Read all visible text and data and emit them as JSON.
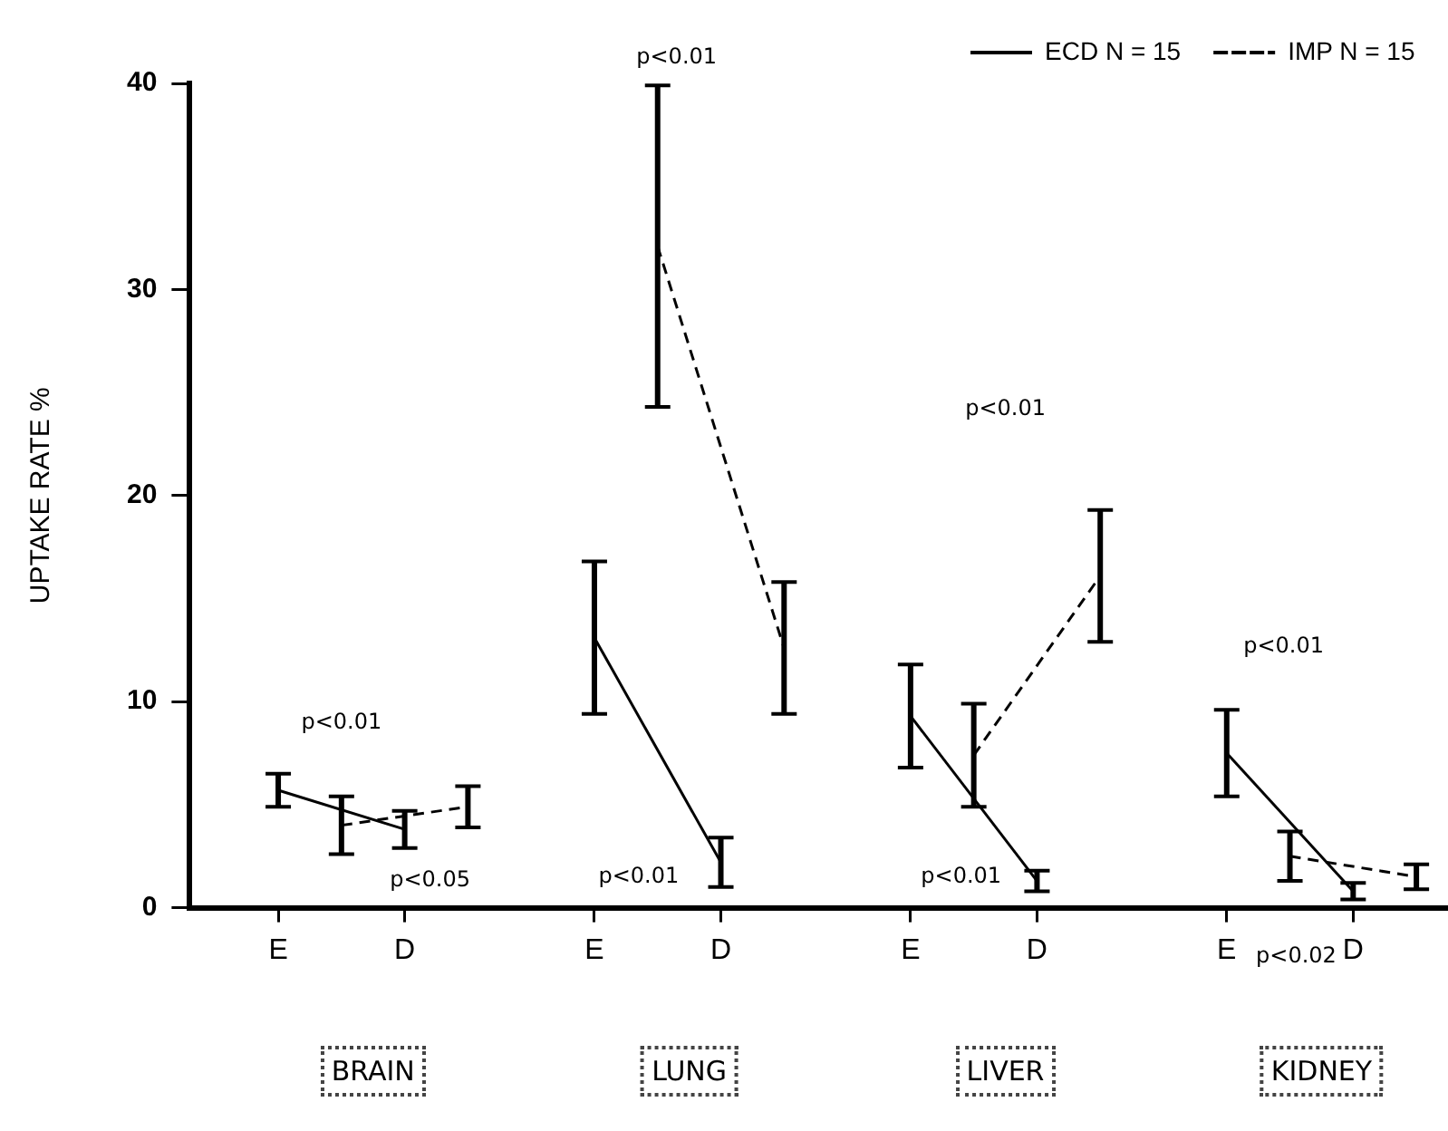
{
  "chart_data": {
    "type": "line",
    "ylabel": "UPTAKE RATE %",
    "categories": [
      "E",
      null,
      "D",
      null,
      null,
      "E",
      null,
      "D",
      null,
      null,
      "E",
      null,
      "D",
      null,
      null,
      "E",
      null,
      "D",
      null
    ],
    "ylim": [
      0,
      40
    ],
    "yticks": [
      0,
      10,
      20,
      30,
      40
    ],
    "legend": "top right",
    "series": [
      {
        "name": "ECD N = 15",
        "color": "#000000",
        "line_style": "solid",
        "values": [
          5.7,
          null,
          3.8,
          null,
          null,
          null,
          null,
          null,
          null,
          null,
          null,
          null,
          null,
          null,
          null,
          null,
          null,
          null,
          null
        ],
        "errors": [
          0.8,
          null,
          0.9,
          null,
          null,
          null,
          null,
          null,
          null,
          null,
          null,
          null,
          null,
          null,
          null,
          null,
          null,
          null,
          null
        ]
      },
      {
        "name": "IMP N = 15",
        "color": "#000000",
        "line_style": "dashed",
        "values": [
          null,
          4.0,
          null,
          4.9,
          null,
          null,
          null,
          null,
          null,
          null,
          null,
          null,
          null,
          null,
          null,
          null,
          null,
          null,
          null
        ],
        "errors": [
          null,
          1.4,
          null,
          1.0,
          null,
          null,
          null,
          null,
          null,
          null,
          null,
          null,
          null,
          null,
          null,
          null,
          null,
          null,
          null
        ]
      },
      {
        "color": "#000000",
        "line_style": "solid",
        "values": [
          null,
          null,
          null,
          null,
          null,
          13.1,
          null,
          2.2,
          null,
          null,
          null,
          null,
          null,
          null,
          null,
          null,
          null,
          null,
          null
        ],
        "errors": [
          null,
          null,
          null,
          null,
          null,
          3.7,
          null,
          1.2,
          null,
          null,
          null,
          null,
          null,
          null,
          null,
          null,
          null,
          null,
          null
        ]
      },
      {
        "color": "#000000",
        "line_style": "dashed",
        "values": [
          null,
          null,
          null,
          null,
          null,
          null,
          32.1,
          null,
          12.6,
          null,
          null,
          null,
          null,
          null,
          null,
          null,
          null,
          null,
          null
        ],
        "errors": [
          null,
          null,
          null,
          null,
          null,
          null,
          7.8,
          null,
          3.2,
          null,
          null,
          null,
          null,
          null,
          null,
          null,
          null,
          null,
          null
        ]
      },
      {
        "color": "#000000",
        "line_style": "solid",
        "values": [
          null,
          null,
          null,
          null,
          null,
          null,
          null,
          null,
          null,
          null,
          9.3,
          null,
          1.3,
          null,
          null,
          null,
          null,
          null,
          null
        ],
        "errors": [
          null,
          null,
          null,
          null,
          null,
          null,
          null,
          null,
          null,
          null,
          2.5,
          null,
          0.5,
          null,
          null,
          null,
          null,
          null,
          null
        ]
      },
      {
        "color": "#000000",
        "line_style": "dashed",
        "values": [
          null,
          null,
          null,
          null,
          null,
          null,
          null,
          null,
          null,
          null,
          null,
          7.4,
          null,
          16.1,
          null,
          null,
          null,
          null,
          null
        ],
        "errors": [
          null,
          null,
          null,
          null,
          null,
          null,
          null,
          null,
          null,
          null,
          null,
          2.5,
          null,
          3.2,
          null,
          null,
          null,
          null,
          null
        ]
      },
      {
        "color": "#000000",
        "line_style": "solid",
        "values": [
          null,
          null,
          null,
          null,
          null,
          null,
          null,
          null,
          null,
          null,
          null,
          null,
          null,
          null,
          null,
          7.5,
          null,
          0.8,
          null
        ],
        "errors": [
          null,
          null,
          null,
          null,
          null,
          null,
          null,
          null,
          null,
          null,
          null,
          null,
          null,
          null,
          null,
          2.1,
          null,
          0.4,
          null
        ]
      },
      {
        "color": "#000000",
        "line_style": "dashed",
        "values": [
          null,
          null,
          null,
          null,
          null,
          null,
          null,
          null,
          null,
          null,
          null,
          null,
          null,
          null,
          null,
          null,
          2.5,
          null,
          1.5
        ],
        "errors": [
          null,
          null,
          null,
          null,
          null,
          null,
          null,
          null,
          null,
          null,
          null,
          null,
          null,
          null,
          null,
          null,
          1.2,
          null,
          0.6
        ]
      }
    ],
    "annotations": [
      "p<0.01",
      "p<0.05",
      "p<0.01",
      "p<0.01",
      "p<0.01",
      "p<0.01",
      "p<0.01",
      "p<0.02",
      "BRAIN",
      "LUNG",
      "LIVER",
      "KIDNEY"
    ]
  }
}
